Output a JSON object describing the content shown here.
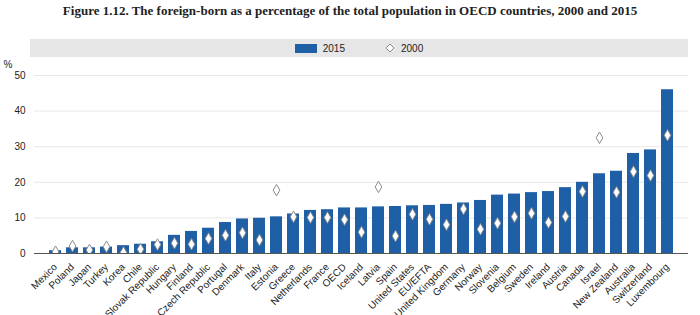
{
  "chart_data": {
    "type": "bar",
    "title": "Figure 1.12.  The foreign-born as a percentage of the total population in OECD countries, 2000 and 2015",
    "y_label": "%",
    "categories": [
      "Mexico",
      "Poland",
      "Japan",
      "Turkey",
      "Korea",
      "Chile",
      "Slovak Republic",
      "Hungary",
      "Finland",
      "Czech Republic",
      "Portugal",
      "Denmark",
      "Italy",
      "Estonia",
      "Greece",
      "Netherlands",
      "France",
      "OECD",
      "Iceland",
      "Latvia",
      "Spain",
      "United States",
      "EU/EFTA",
      "United Kingdom",
      "Germany",
      "Norway",
      "Slovenia",
      "Belgium",
      "Sweden",
      "Ireland",
      "Austria",
      "Canada",
      "Israel",
      "New Zealand",
      "Australia",
      "Switzerland",
      "Luxembourg"
    ],
    "series": [
      {
        "name": "2015",
        "type": "bar",
        "color": "#1f5fa5",
        "values": [
          0.8,
          1.6,
          1.6,
          1.8,
          2.2,
          2.6,
          3.3,
          5.1,
          6.2,
          7.1,
          8.7,
          9.7,
          9.9,
          10.3,
          11.1,
          12.1,
          12.3,
          12.8,
          12.8,
          13.1,
          13.2,
          13.4,
          13.5,
          13.8,
          14.2,
          14.9,
          16.4,
          16.7,
          17.1,
          17.4,
          18.5,
          20.0,
          22.4,
          23.1,
          28.1,
          29.1,
          46.0
        ]
      },
      {
        "name": "2000",
        "type": "scatter",
        "marker": "diamond",
        "color": "#8c8c8c",
        "values": [
          0.5,
          2.1,
          1.0,
          1.9,
          0.3,
          1.2,
          2.5,
          2.9,
          2.6,
          4.2,
          5.1,
          5.8,
          3.8,
          17.8,
          10.3,
          10.1,
          10.1,
          9.5,
          6.0,
          18.7,
          4.9,
          11.0,
          9.6,
          8.1,
          12.5,
          6.8,
          8.5,
          10.3,
          11.3,
          8.7,
          10.4,
          17.4,
          32.5,
          17.2,
          23.0,
          21.9,
          33.2
        ]
      }
    ],
    "ylim": [
      0,
      50
    ],
    "yticks": [
      0,
      10,
      20,
      30,
      40,
      50
    ],
    "grid": true,
    "legend": "top"
  }
}
